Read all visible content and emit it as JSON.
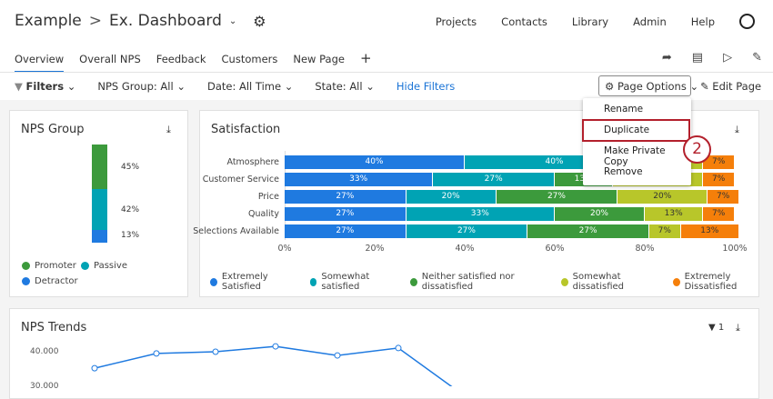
{
  "header": {
    "project": "Example",
    "separator": ">",
    "dashboard": "Ex. Dashboard",
    "nav": [
      "Projects",
      "Contacts",
      "Library",
      "Admin",
      "Help"
    ]
  },
  "tabs": [
    {
      "label": "Overview",
      "active": true
    },
    {
      "label": "Overall NPS"
    },
    {
      "label": "Feedback"
    },
    {
      "label": "Customers"
    },
    {
      "label": "New Page"
    }
  ],
  "filters": {
    "label": "Filters",
    "items": [
      "NPS Group:  All",
      "Date: All Time",
      "State:  All"
    ],
    "hide": "Hide Filters"
  },
  "page_options": {
    "label": "Page Options",
    "edit": "Edit Page",
    "menu": [
      "Rename",
      "Duplicate",
      "Make Private Copy",
      "Remove"
    ],
    "highlighted": "Duplicate",
    "step": "2"
  },
  "colors": {
    "extremely_satisfied": "#1f7ae0",
    "somewhat_satisfied": "#00a3b4",
    "neither": "#3c9a3c",
    "somewhat_dissatisfied": "#b8c62a",
    "extremely_dissatisfied": "#f57f0a",
    "highlight": "#b3202c"
  },
  "nps_group": {
    "title": "NPS Group",
    "segments": [
      {
        "name": "Promoter",
        "value": 45,
        "label": "45%",
        "color": "#3c9a3c"
      },
      {
        "name": "Passive",
        "value": 42,
        "label": "42%",
        "color": "#00a3b4"
      },
      {
        "name": "Detractor",
        "value": 13,
        "label": "13%",
        "color": "#1f7ae0"
      }
    ]
  },
  "chart_data": [
    {
      "type": "bar",
      "title": "Satisfaction",
      "orientation": "horizontal",
      "stacked": true,
      "categories": [
        "Atmosphere",
        "Customer Service",
        "Price",
        "Quality",
        "Selections Available"
      ],
      "xlim": [
        0,
        100
      ],
      "xticks": [
        "0%",
        "20%",
        "40%",
        "60%",
        "80%",
        "100%"
      ],
      "series": [
        {
          "name": "Extremely Satisfied",
          "color": "#1f7ae0",
          "values": [
            40,
            33,
            27,
            27,
            27
          ]
        },
        {
          "name": "Somewhat satisfied",
          "color": "#00a3b4",
          "values": [
            40,
            27,
            20,
            33,
            27
          ]
        },
        {
          "name": "Neither satisfied nor dissatisfied",
          "color": "#3c9a3c",
          "values": [
            0,
            13,
            27,
            20,
            27
          ]
        },
        {
          "name": "Somewhat dissatisfied",
          "color": "#b8c62a",
          "values": [
            13,
            20,
            20,
            13,
            7
          ]
        },
        {
          "name": "Extremely Dissatisfied",
          "color": "#f57f0a",
          "values": [
            7,
            7,
            7,
            7,
            13
          ]
        }
      ],
      "legend": "bottom"
    },
    {
      "type": "line",
      "title": "NPS Trends",
      "filter_count": "1",
      "yticks": [
        "40.000",
        "30.000"
      ],
      "values": [
        35100,
        39500,
        40000,
        41600,
        38900,
        41100,
        28000
      ],
      "color": "#1f7ae0"
    }
  ]
}
